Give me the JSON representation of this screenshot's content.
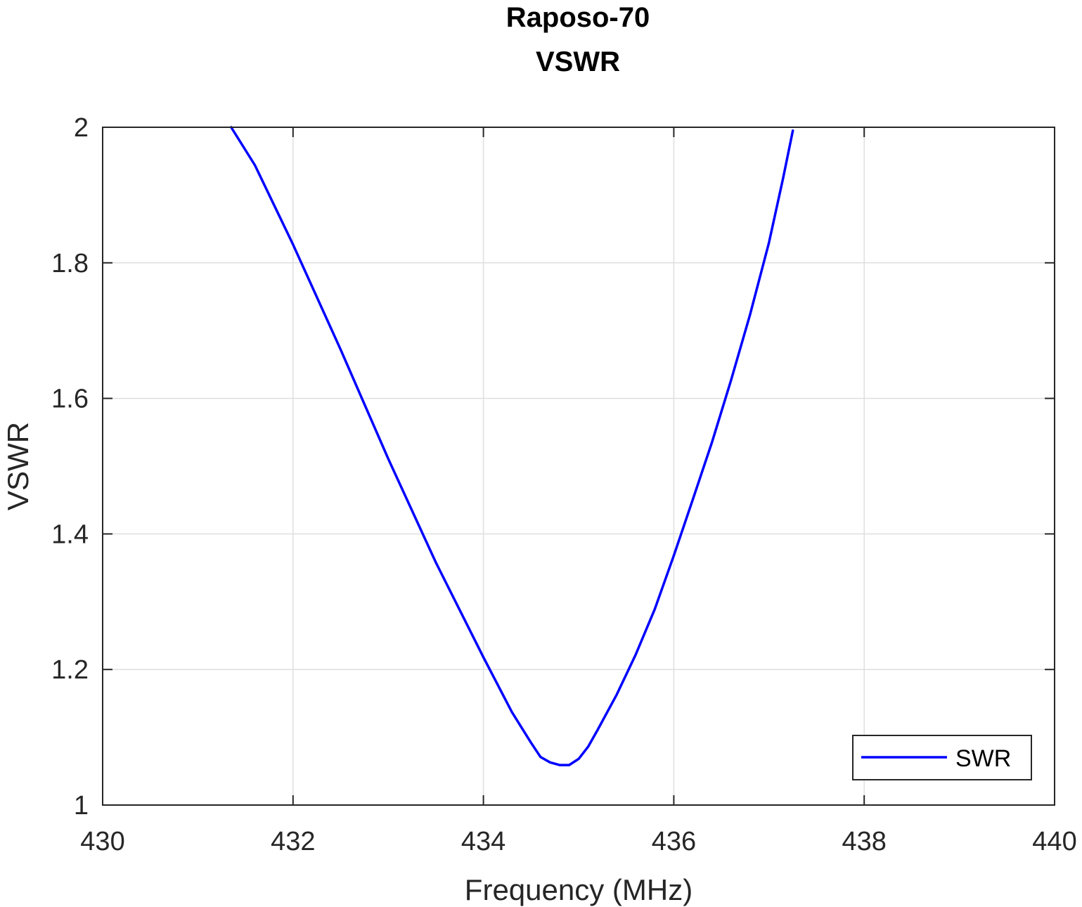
{
  "chart_data": {
    "type": "line",
    "title": [
      "Raposo-70",
      "VSWR"
    ],
    "xlabel": "Frequency (MHz)",
    "ylabel": "VSWR",
    "xlim": [
      430,
      440
    ],
    "ylim": [
      1,
      2
    ],
    "xticks": [
      430,
      432,
      434,
      436,
      438,
      440
    ],
    "xtick_labels": [
      "430",
      "432",
      "434",
      "436",
      "438",
      "440"
    ],
    "yticks": [
      1,
      1.2,
      1.4,
      1.6,
      1.8,
      2
    ],
    "ytick_labels": [
      "1",
      "1.2",
      "1.4",
      "1.6",
      "1.8",
      "2"
    ],
    "grid": true,
    "legend_position": "bottom-right",
    "series": [
      {
        "name": "SWR",
        "color": "#0000ff",
        "x": [
          431.35,
          431.6,
          432.0,
          432.5,
          433.0,
          433.5,
          434.0,
          434.3,
          434.5,
          434.6,
          434.7,
          434.8,
          434.9,
          435.0,
          435.1,
          435.2,
          435.4,
          435.6,
          435.8,
          436.0,
          436.2,
          436.4,
          436.6,
          436.8,
          437.0,
          437.15,
          437.25
        ],
        "y": [
          2.0,
          1.944,
          1.827,
          1.672,
          1.511,
          1.358,
          1.218,
          1.137,
          1.092,
          1.071,
          1.063,
          1.059,
          1.059,
          1.068,
          1.086,
          1.111,
          1.163,
          1.222,
          1.289,
          1.368,
          1.451,
          1.535,
          1.626,
          1.723,
          1.83,
          1.926,
          1.995
        ]
      }
    ]
  }
}
